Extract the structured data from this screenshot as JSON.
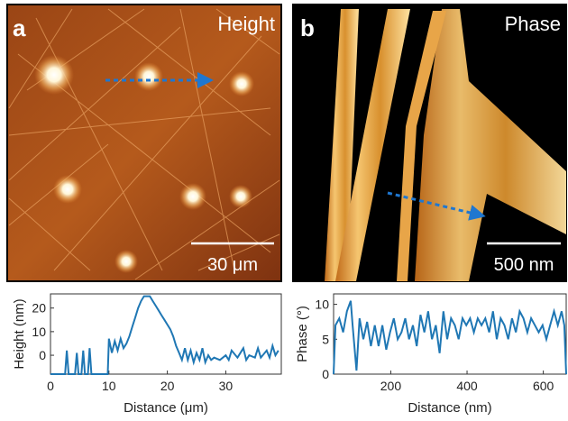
{
  "panels": [
    {
      "label": "a",
      "title": "Height",
      "scale_bar": "30 μm"
    },
    {
      "label": "b",
      "title": "Phase",
      "scale_bar": "500 nm"
    }
  ],
  "chart_data": [
    {
      "type": "line",
      "xlabel": "Distance (μm)",
      "ylabel": "Height (nm)",
      "color": "#1f77b4",
      "xlim": [
        0,
        39.5
      ],
      "ylim": [
        -8,
        26
      ],
      "xticks": [
        0,
        10,
        20,
        30
      ],
      "yticks": [
        0,
        10,
        20
      ],
      "x": [
        0,
        2.5,
        2.8,
        3.1,
        4.2,
        4.5,
        4.8,
        5.3,
        5.6,
        5.9,
        6.4,
        6.7,
        7.0,
        9.8,
        10.0,
        10.5,
        11,
        11.5,
        12,
        12.5,
        13,
        13.5,
        14,
        14.5,
        15,
        15.5,
        16,
        17,
        17.5,
        18,
        18.5,
        19,
        19.5,
        20,
        20.5,
        21,
        21.5,
        22,
        22.5,
        23,
        23.5,
        24,
        24.5,
        25,
        25.5,
        26,
        26.5,
        27,
        27.5,
        28,
        29,
        30,
        30.5,
        31,
        32,
        33,
        33.5,
        34,
        35,
        35.5,
        36,
        37,
        37.5,
        38,
        38.5,
        39
      ],
      "values": [
        -8,
        -8,
        2,
        -8,
        -8,
        1,
        -8,
        -8,
        2,
        -8,
        -8,
        3,
        -8,
        -8,
        7,
        1,
        6,
        2,
        7,
        3,
        5,
        8,
        12,
        16,
        20,
        23,
        25,
        25,
        23,
        21,
        19,
        17,
        15,
        13,
        11,
        8,
        4,
        1,
        -2,
        3,
        -2,
        2,
        -3,
        1,
        -2,
        3,
        -3,
        0,
        -2,
        -1,
        -2,
        0,
        -2,
        2,
        -1,
        3,
        -2,
        0,
        -1,
        3,
        -1,
        2,
        -1,
        4,
        0,
        2
      ]
    },
    {
      "type": "line",
      "xlabel": "Distance (nm)",
      "ylabel": "Phase (°)",
      "color": "#1f77b4",
      "xlim": [
        50,
        660
      ],
      "ylim": [
        0,
        11.5
      ],
      "xticks": [
        200,
        400,
        600
      ],
      "yticks": [
        0,
        5,
        10
      ],
      "x": [
        50,
        55,
        65,
        75,
        85,
        95,
        100,
        110,
        118,
        128,
        138,
        148,
        158,
        168,
        178,
        188,
        198,
        208,
        218,
        228,
        238,
        248,
        258,
        268,
        278,
        288,
        298,
        308,
        318,
        328,
        338,
        348,
        358,
        368,
        378,
        388,
        398,
        408,
        418,
        428,
        438,
        448,
        458,
        468,
        478,
        488,
        498,
        508,
        518,
        528,
        538,
        548,
        558,
        568,
        578,
        588,
        598,
        608,
        618,
        628,
        638,
        648,
        655,
        660
      ],
      "values": [
        0,
        7,
        8,
        6,
        9,
        10.5,
        7,
        0.5,
        8,
        5,
        7.5,
        4,
        7,
        4,
        7,
        3.5,
        6,
        8,
        5,
        6,
        8,
        5,
        7,
        4,
        8.5,
        6,
        9,
        5,
        7,
        3,
        9,
        5,
        8,
        7,
        5,
        8,
        7,
        8,
        6,
        8,
        7,
        8,
        6,
        9,
        5,
        8,
        7,
        5,
        8,
        6,
        9,
        8,
        6,
        8,
        7,
        6,
        7,
        5,
        7,
        9,
        7,
        9,
        7,
        0
      ]
    }
  ]
}
